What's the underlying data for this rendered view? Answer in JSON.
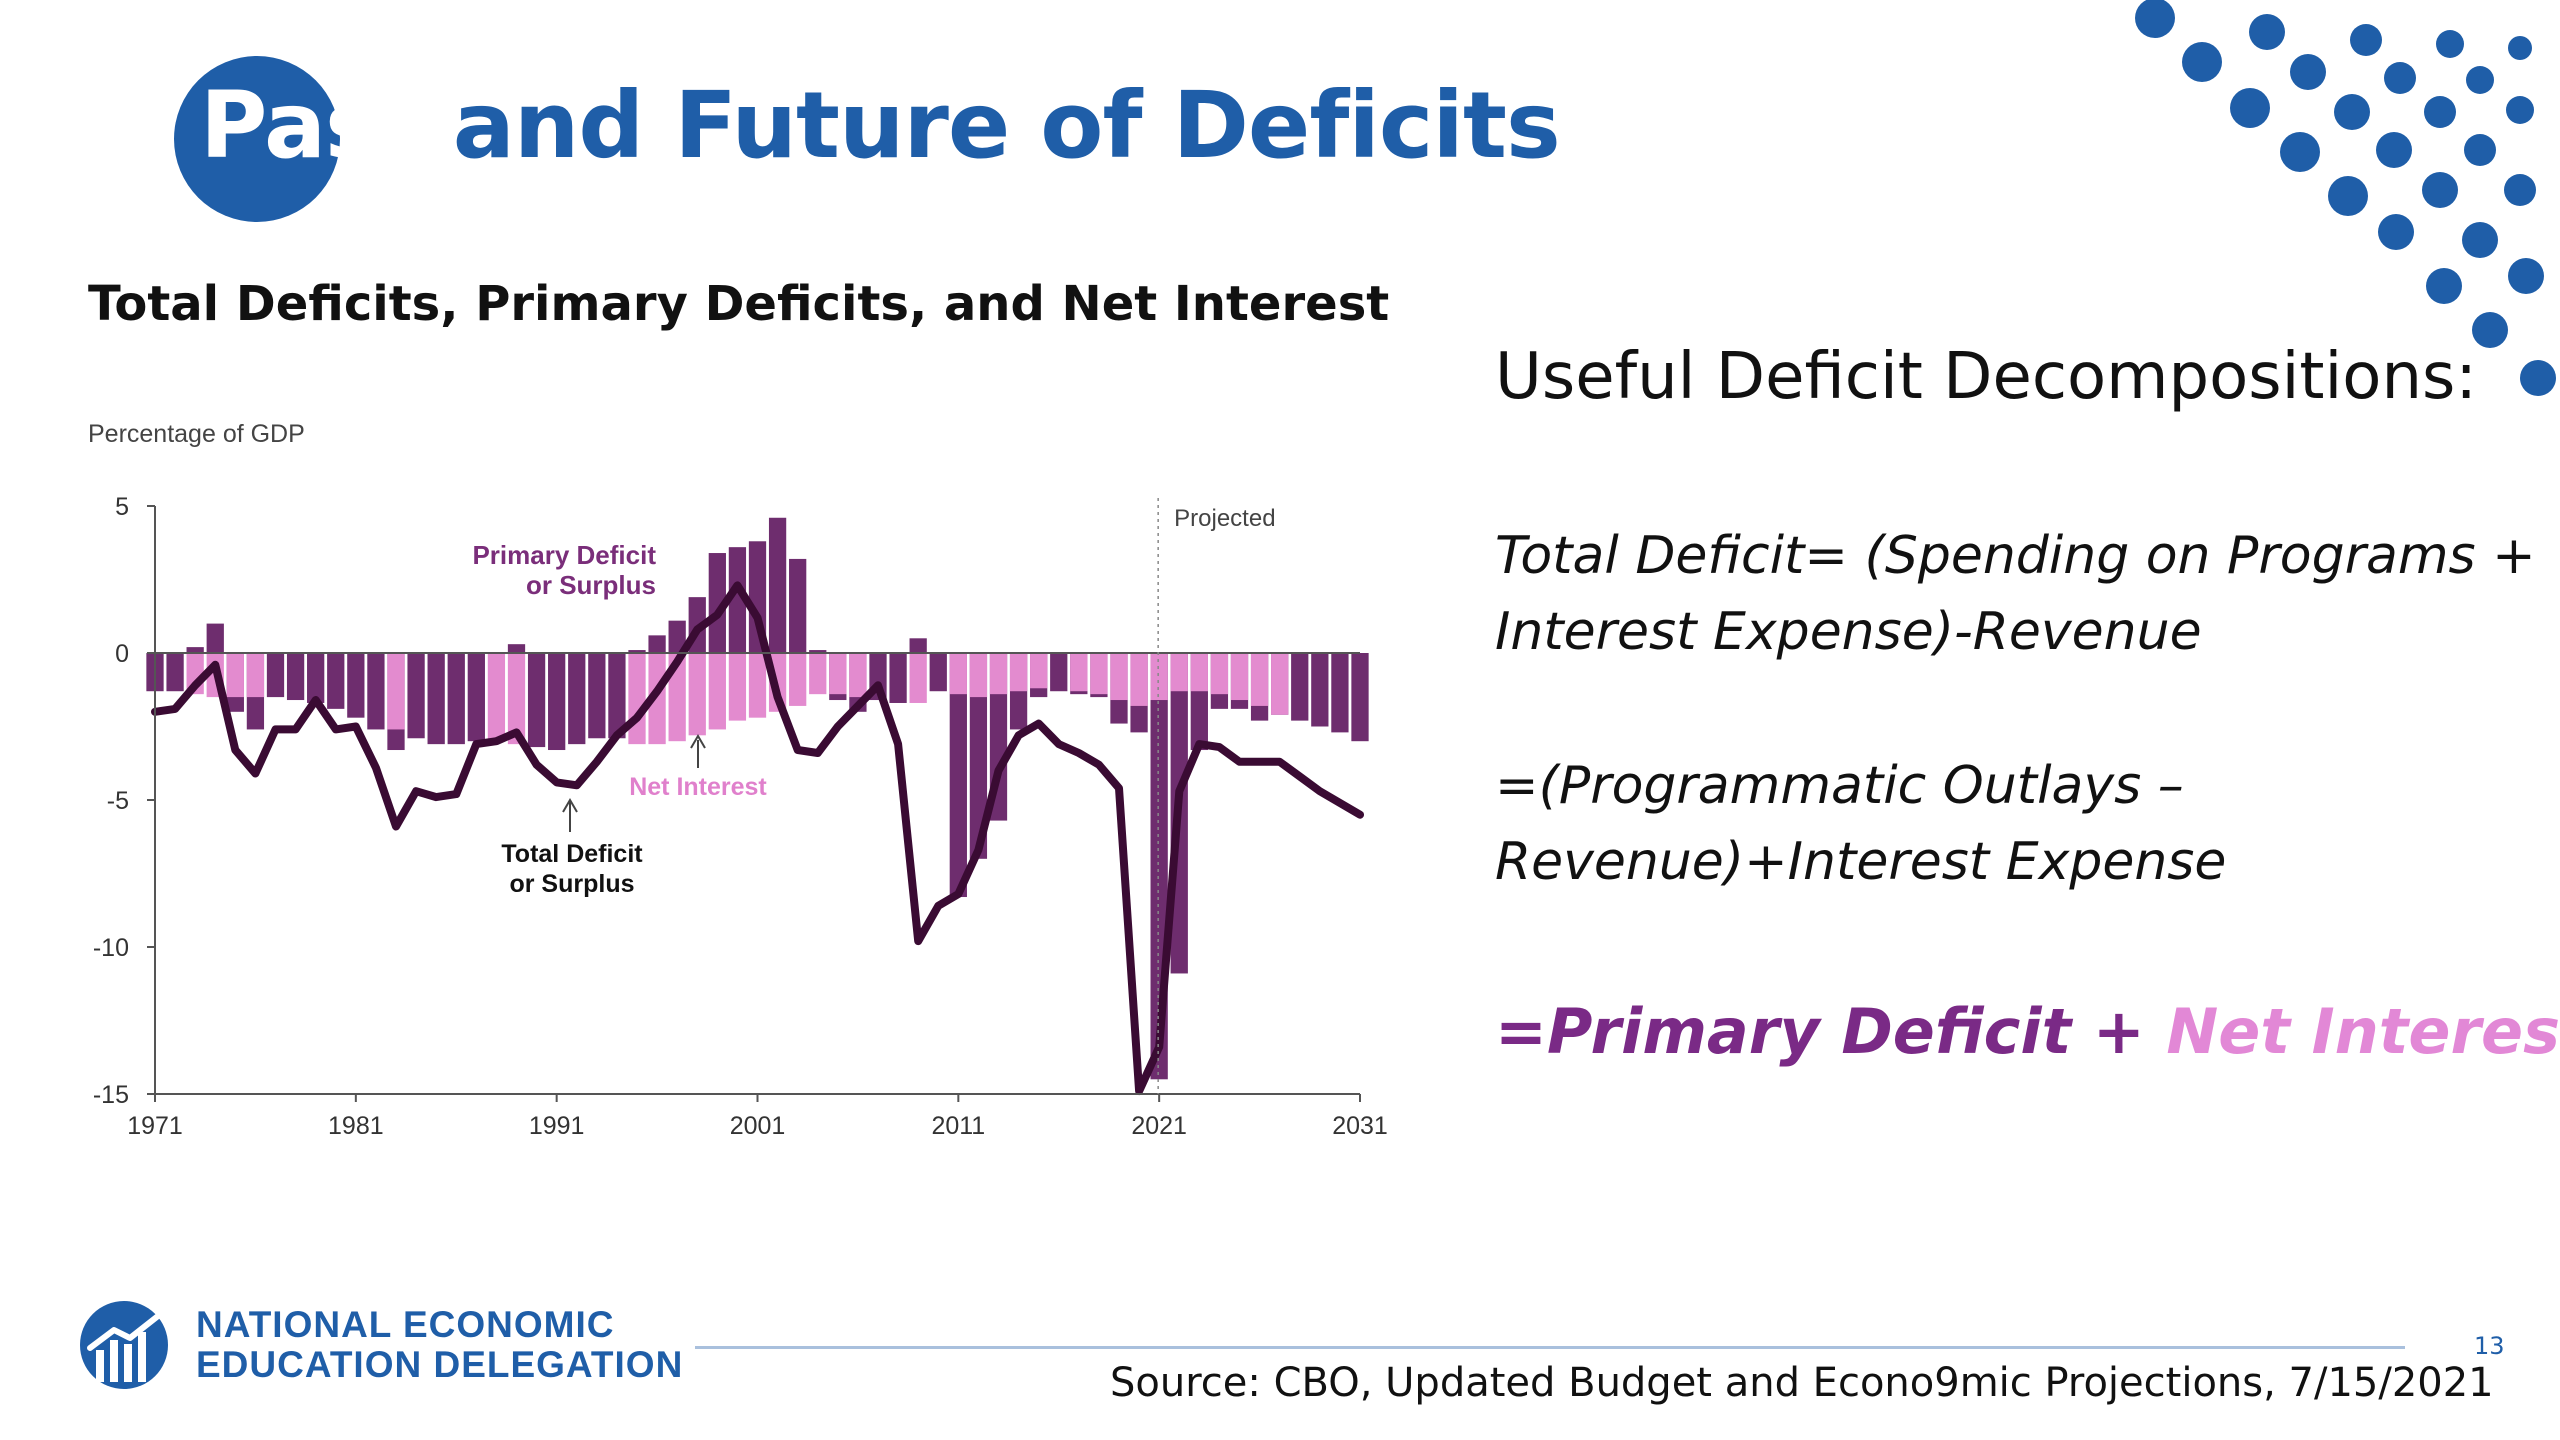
{
  "slide": {
    "title_first": "Past",
    "title_rest": " and Future of Deficits",
    "chart_heading": "Total Deficits, Primary Deficits, and Net Interest",
    "right_heading": "Useful Deficit Decompositions:",
    "eq_lines": [
      "Total Deficit= (Spending on Programs +",
      "Interest Expense)-Revenue",
      "=(Programmatic Outlays –",
      "Revenue)+Interest Expense"
    ],
    "eq_final": {
      "prefix": "=",
      "primary": "Primary Deficit",
      "plus": " + ",
      "interest": "Net Interest"
    },
    "org_line1": "NATIONAL ECONOMIC",
    "org_line2": "EDUCATION DELEGATION",
    "source": "Source: CBO, Updated Budget and Econo9mic Projections, 7/15/2021",
    "page_number": "13"
  },
  "colors": {
    "brand_blue": "#1f5ea8",
    "primary_dark": "#6e2d6e",
    "net_interest": "#e38bcf",
    "total_line": "#3a0b33",
    "eq_primary": "#7a2a86",
    "eq_interest": "#e288d6"
  },
  "chart_data": {
    "type": "bar",
    "title": "Total Deficits, Primary Deficits, and Net Interest",
    "ylabel": "Percentage of GDP",
    "xlabel": "",
    "ylim": [
      -15,
      5
    ],
    "yticks": [
      "5",
      "0",
      "-5",
      "-10",
      "-15"
    ],
    "ytick_values": [
      5,
      0,
      -5,
      -10,
      -15
    ],
    "xticks": [
      "1971",
      "1981",
      "1991",
      "2001",
      "2011",
      "2021",
      "2031"
    ],
    "xtick_values": [
      1971,
      1981,
      1991,
      2001,
      2011,
      2021,
      2031
    ],
    "projected_start": 2021,
    "annotations": {
      "projected": "Projected",
      "primary_label": [
        "Primary Deficit",
        "or Surplus"
      ],
      "net_interest_label": "Net Interest",
      "total_label": [
        "Total Deficit",
        "or Surplus"
      ]
    },
    "years": [
      1971,
      1972,
      1973,
      1974,
      1975,
      1976,
      1977,
      1978,
      1979,
      1980,
      1981,
      1982,
      1983,
      1984,
      1985,
      1986,
      1987,
      1988,
      1989,
      1990,
      1991,
      1992,
      1993,
      1994,
      1995,
      1996,
      1997,
      1998,
      1999,
      2000,
      2001,
      2002,
      2003,
      2004,
      2005,
      2006,
      2007,
      2008,
      2009,
      2010,
      2011,
      2012,
      2013,
      2014,
      2015,
      2016,
      2017,
      2018,
      2019,
      2020,
      2021,
      2022,
      2023,
      2024,
      2025,
      2026,
      2027,
      2028,
      2029,
      2030,
      2031
    ],
    "series": [
      {
        "name": "Primary Deficit or Surplus",
        "values": [
          -0.7,
          -0.6,
          0.2,
          1.0,
          -2.0,
          -2.6,
          -1.1,
          -1.1,
          -0.1,
          -0.6,
          -0.2,
          -1.6,
          -3.3,
          -1.9,
          -1.9,
          -1.9,
          -0.6,
          0.0,
          0.3,
          -1.2,
          -1.3,
          -1.6,
          -1.0,
          -0.2,
          0.1,
          0.6,
          1.1,
          1.9,
          3.4,
          3.6,
          3.8,
          4.6,
          3.2,
          0.1,
          -1.6,
          -2.0,
          -0.9,
          -0.3,
          0.5,
          -0.7,
          -8.3,
          -7.0,
          -5.7,
          -2.6,
          -1.5,
          -0.9,
          -1.4,
          -1.5,
          -2.4,
          -2.7,
          -14.5,
          -10.9,
          -3.3,
          -1.9,
          -1.9,
          -2.3,
          -2.1,
          -2.0,
          -2.2,
          -2.4,
          -2.7
        ]
      },
      {
        "name": "Net Interest",
        "values": [
          -1.3,
          -1.3,
          -1.4,
          -1.5,
          -1.5,
          -1.5,
          -1.5,
          -1.6,
          -1.7,
          -1.9,
          -2.2,
          -2.6,
          -2.6,
          -2.9,
          -3.1,
          -3.1,
          -3.0,
          -3.0,
          -3.1,
          -3.2,
          -3.3,
          -3.1,
          -2.9,
          -2.9,
          -3.1,
          -3.1,
          -3.0,
          -2.8,
          -2.6,
          -2.3,
          -2.2,
          -2.0,
          -1.8,
          -1.4,
          -1.4,
          -1.5,
          -1.6,
          -1.7,
          -1.7,
          -1.3,
          -1.4,
          -1.5,
          -1.4,
          -1.3,
          -1.2,
          -1.3,
          -1.3,
          -1.4,
          -1.6,
          -1.8,
          -1.6,
          -1.3,
          -1.3,
          -1.4,
          -1.6,
          -1.8,
          -2.1,
          -2.3,
          -2.5,
          -2.7,
          -3.0
        ]
      },
      {
        "name": "Total Deficit or Surplus",
        "values": [
          -2.0,
          -1.9,
          -1.1,
          -0.4,
          -3.3,
          -4.1,
          -2.6,
          -2.6,
          -1.6,
          -2.6,
          -2.5,
          -3.9,
          -5.9,
          -4.7,
          -4.9,
          -4.8,
          -3.1,
          -3.0,
          -2.7,
          -3.8,
          -4.4,
          -4.5,
          -3.7,
          -2.8,
          -2.2,
          -1.3,
          -0.3,
          0.8,
          1.3,
          2.3,
          1.2,
          -1.5,
          -3.3,
          -3.4,
          -2.5,
          -1.8,
          -1.1,
          -3.1,
          -9.8,
          -8.6,
          -8.2,
          -6.7,
          -4.0,
          -2.8,
          -2.4,
          -3.1,
          -3.4,
          -3.8,
          -4.6,
          -14.9,
          -13.4,
          -4.7,
          -3.1,
          -3.2,
          -3.7,
          -3.7,
          -3.7,
          -4.2,
          -4.7,
          -5.1,
          -5.5
        ]
      }
    ],
    "grid": false,
    "legend": "none"
  }
}
